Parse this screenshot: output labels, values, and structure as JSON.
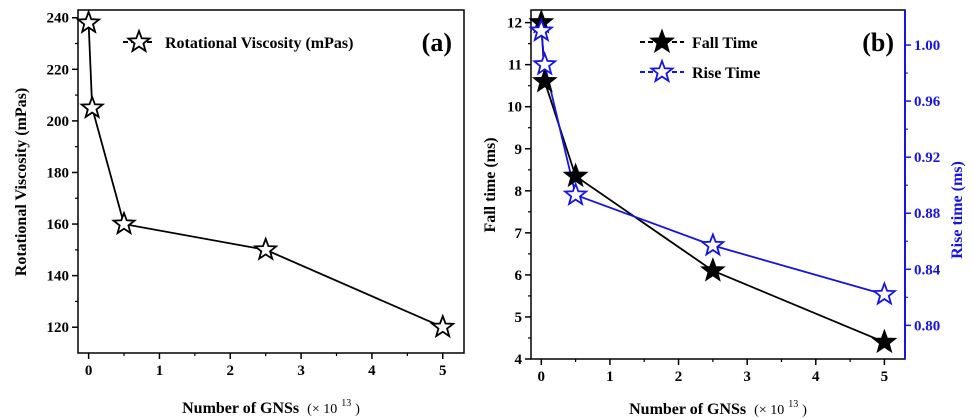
{
  "chart_data": [
    {
      "type": "line",
      "panel_label": "(a)",
      "xlabel": "Number of GNSs",
      "xlabel_suffix": "(× 10",
      "xlabel_exp": "13",
      "xlabel_close": ")",
      "ylabel": "Rotational Viscosity (mPas)",
      "xlim": [
        -0.15,
        5.3
      ],
      "ylim": [
        110,
        243
      ],
      "xticks": [
        0,
        1,
        2,
        3,
        4,
        5
      ],
      "yticks": [
        120,
        140,
        160,
        180,
        200,
        220,
        240
      ],
      "legend_position": "top",
      "series": [
        {
          "name": "Rotational Viscosity (mPas)",
          "color": "#000000",
          "marker": "open-star",
          "x": [
            0,
            0.05,
            0.5,
            2.5,
            5
          ],
          "y": [
            238,
            205,
            160,
            150,
            120
          ]
        }
      ]
    },
    {
      "type": "line",
      "panel_label": "(b)",
      "xlabel": "Number of GNSs",
      "xlabel_suffix": "(× 10",
      "xlabel_exp": "13",
      "xlabel_close": ")",
      "ylabel": "Fall time (ms)",
      "y2label": "Rise time (ms)",
      "xlim": [
        -0.15,
        5.3
      ],
      "ylim": [
        4,
        12.3
      ],
      "y2lim": [
        0.776,
        1.025
      ],
      "xticks": [
        0,
        1,
        2,
        3,
        4,
        5
      ],
      "yticks": [
        4,
        5,
        6,
        7,
        8,
        9,
        10,
        11,
        12
      ],
      "y2ticks": [
        "0.80",
        "0.84",
        "0.88",
        "0.92",
        "0.96",
        "1.00"
      ],
      "legend_position": "top-right",
      "series": [
        {
          "name": "Fall Time",
          "color": "#000000",
          "marker": "filled-star",
          "axis": "left",
          "x": [
            0,
            0.05,
            0.5,
            2.5,
            5
          ],
          "y": [
            12.0,
            10.6,
            8.35,
            6.1,
            4.4
          ]
        },
        {
          "name": "Rise Time",
          "color": "#1414e6",
          "marker": "open-star",
          "axis": "right",
          "x": [
            0,
            0.05,
            0.5,
            2.5,
            5
          ],
          "y": [
            1.01,
            0.986,
            0.893,
            0.857,
            0.822
          ]
        }
      ]
    }
  ]
}
